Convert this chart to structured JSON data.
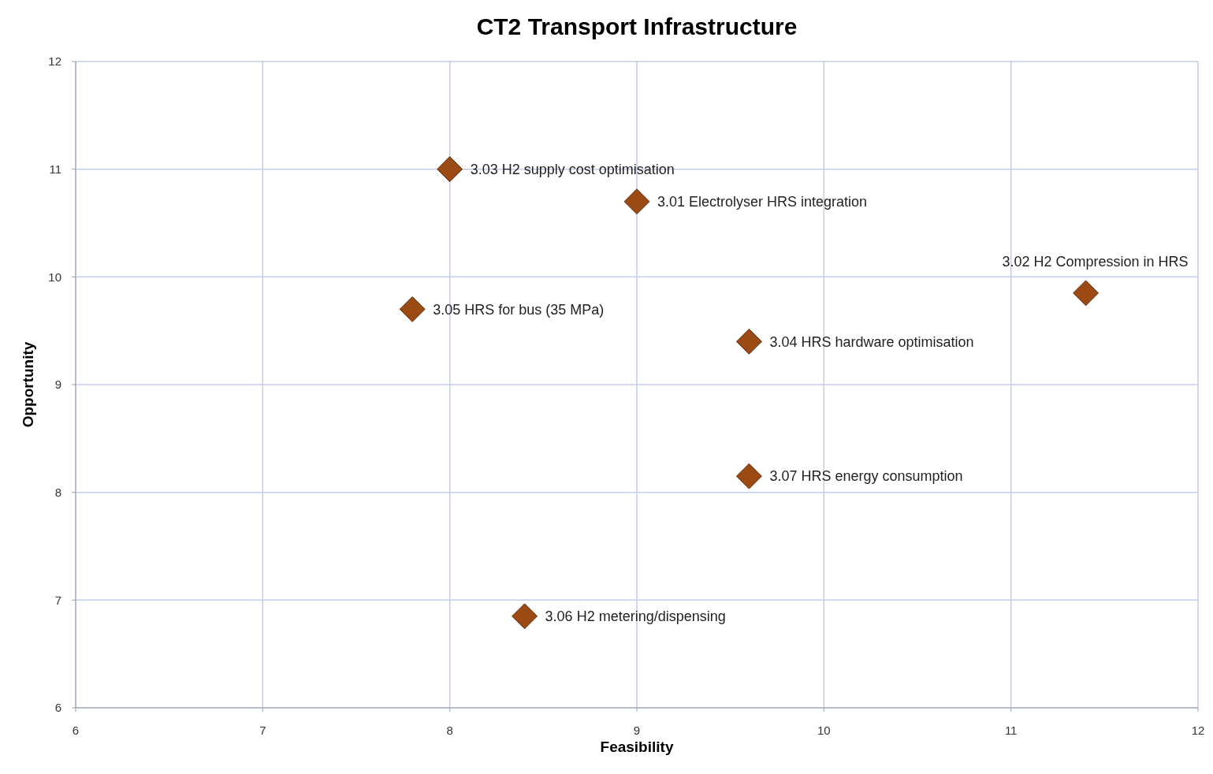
{
  "chart_data": {
    "type": "scatter",
    "title": "CT2 Transport Infrastructure",
    "xlabel": "Feasibility",
    "ylabel": "Opportunity",
    "x": [
      8.0,
      9.0,
      11.4,
      9.6,
      7.8,
      8.4,
      9.6
    ],
    "series": [
      {
        "color": "#9c4a14",
        "values": [
          11.0,
          10.7,
          9.85,
          9.4,
          9.7,
          6.85,
          8.15
        ]
      }
    ],
    "annotations": [
      {
        "text": "3.03 H2 supply cost optimisation",
        "x": 8.0,
        "y": 11.0
      },
      {
        "text": "3.01 Electrolyser HRS integration",
        "x": 9.0,
        "y": 10.7
      },
      {
        "text": "3.02 H2 Compression in HRS",
        "x": 11.4,
        "y": 9.85
      },
      {
        "text": "3.04 HRS hardware optimisation",
        "x": 9.6,
        "y": 9.4
      },
      {
        "text": "3.05 HRS for bus (35 MPa)",
        "x": 7.8,
        "y": 9.7
      },
      {
        "text": "3.06 H2 metering/dispensing",
        "x": 8.4,
        "y": 6.85
      },
      {
        "text": "3.07 HRS energy consumption",
        "x": 9.6,
        "y": 8.15
      }
    ],
    "xlim": [
      6,
      12
    ],
    "ylim": [
      6,
      12
    ],
    "xticks": [
      6,
      7,
      8,
      9,
      10,
      11,
      12
    ],
    "yticks": [
      6,
      7,
      8,
      9,
      10,
      11,
      12
    ],
    "grid": true,
    "marker": "diamond"
  }
}
